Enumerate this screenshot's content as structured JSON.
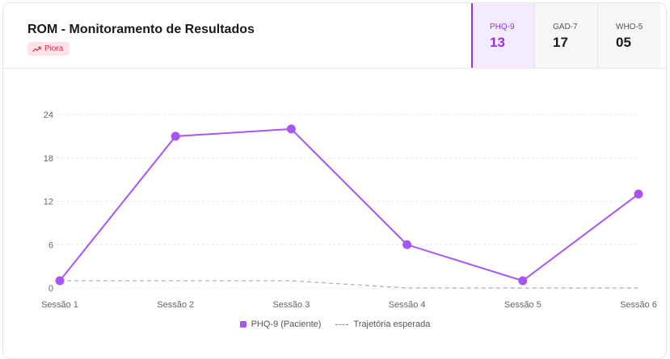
{
  "header": {
    "title": "ROM - Monitoramento de Resultados",
    "badge": "Piora"
  },
  "metrics": [
    {
      "label": "PHQ-9",
      "value": "13",
      "active": true
    },
    {
      "label": "GAD-7",
      "value": "17",
      "active": false
    },
    {
      "label": "WHO-5",
      "value": "05",
      "active": false
    }
  ],
  "colors": {
    "accent": "#a855f7",
    "expected": "#aaaaaa",
    "badge_bg": "#fde3e7",
    "badge_text": "#d0314a"
  },
  "icons": {
    "badge": "trending-up-icon"
  },
  "chart_data": {
    "type": "line",
    "categories": [
      "Sessão 1",
      "Sessão 2",
      "Sessão 3",
      "Sessão 4",
      "Sessão 5",
      "Sessão 6"
    ],
    "ylim": [
      0,
      24
    ],
    "yticks": [
      0,
      6,
      12,
      18,
      24
    ],
    "grid": true,
    "legend_position": "bottom",
    "series": [
      {
        "name": "PHQ-9 (Paciente)",
        "values": [
          1,
          21,
          22,
          6,
          1,
          13
        ],
        "style": "solid",
        "color": "#a855f7"
      },
      {
        "name": "Trajetória esperada",
        "values": [
          1,
          1,
          1,
          0,
          0,
          0
        ],
        "style": "dashed",
        "color": "#aaaaaa"
      }
    ]
  }
}
